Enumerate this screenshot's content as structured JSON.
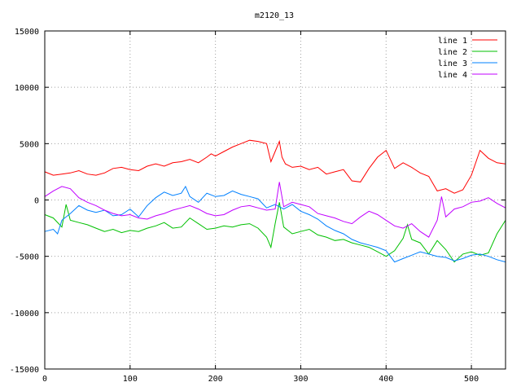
{
  "chart_data": {
    "type": "line",
    "title": "m2120_13",
    "xlabel": "",
    "ylabel": "",
    "xlim": [
      0,
      540
    ],
    "ylim": [
      -15000,
      15000
    ],
    "xticks": [
      0,
      100,
      200,
      300,
      400,
      500
    ],
    "yticks": [
      -15000,
      -10000,
      -5000,
      0,
      5000,
      10000,
      15000
    ],
    "grid": true,
    "legend_position": "top-right",
    "series": [
      {
        "name": "line 1",
        "color": "#ff0000",
        "x": [
          0,
          10,
          20,
          30,
          40,
          50,
          60,
          70,
          80,
          90,
          100,
          110,
          120,
          130,
          140,
          150,
          160,
          170,
          180,
          190,
          195,
          200,
          210,
          220,
          230,
          240,
          250,
          260,
          265,
          270,
          275,
          278,
          282,
          290,
          300,
          310,
          320,
          330,
          340,
          350,
          360,
          370,
          380,
          390,
          400,
          410,
          420,
          430,
          440,
          450,
          460,
          470,
          480,
          490,
          500,
          510,
          520,
          530,
          540
        ],
        "y": [
          2500,
          2200,
          2300,
          2400,
          2600,
          2300,
          2200,
          2400,
          2800,
          2900,
          2700,
          2600,
          3000,
          3200,
          3000,
          3300,
          3400,
          3600,
          3300,
          3800,
          4100,
          3900,
          4300,
          4700,
          5000,
          5300,
          5200,
          5000,
          3400,
          4300,
          5200,
          3800,
          3200,
          2900,
          3000,
          2700,
          2900,
          2300,
          2500,
          2700,
          1700,
          1600,
          2800,
          3800,
          4400,
          2800,
          3300,
          2900,
          2400,
          2100,
          800,
          1000,
          600,
          900,
          2200,
          4400,
          3700,
          3300,
          3200
        ]
      },
      {
        "name": "line 2",
        "color": "#00c000",
        "x": [
          0,
          10,
          20,
          25,
          30,
          40,
          50,
          60,
          70,
          80,
          90,
          100,
          110,
          120,
          130,
          140,
          150,
          160,
          170,
          180,
          190,
          200,
          210,
          220,
          230,
          240,
          250,
          260,
          265,
          270,
          275,
          280,
          290,
          300,
          310,
          320,
          330,
          340,
          350,
          360,
          370,
          380,
          390,
          400,
          410,
          420,
          425,
          430,
          440,
          450,
          460,
          470,
          480,
          490,
          500,
          510,
          520,
          530,
          540
        ],
        "y": [
          -1300,
          -1600,
          -2400,
          -400,
          -1800,
          -2000,
          -2200,
          -2500,
          -2800,
          -2600,
          -2900,
          -2700,
          -2800,
          -2500,
          -2300,
          -2000,
          -2500,
          -2400,
          -1600,
          -2100,
          -2600,
          -2500,
          -2300,
          -2400,
          -2200,
          -2100,
          -2500,
          -3300,
          -4200,
          -2100,
          -200,
          -2400,
          -3000,
          -2800,
          -2600,
          -3100,
          -3300,
          -3600,
          -3500,
          -3800,
          -4000,
          -4200,
          -4600,
          -5000,
          -4500,
          -3400,
          -2200,
          -3500,
          -3800,
          -4800,
          -3600,
          -4400,
          -5500,
          -4800,
          -4600,
          -4900,
          -4700,
          -3000,
          -1800
        ]
      },
      {
        "name": "line 3",
        "color": "#0080ff",
        "x": [
          0,
          10,
          15,
          20,
          30,
          40,
          50,
          60,
          70,
          80,
          90,
          100,
          110,
          120,
          130,
          140,
          150,
          160,
          165,
          170,
          180,
          190,
          200,
          210,
          220,
          230,
          240,
          250,
          260,
          270,
          280,
          290,
          300,
          310,
          320,
          330,
          340,
          350,
          360,
          370,
          380,
          390,
          400,
          410,
          420,
          430,
          440,
          450,
          460,
          470,
          480,
          490,
          500,
          510,
          520,
          530,
          540
        ],
        "y": [
          -2800,
          -2600,
          -3000,
          -1800,
          -1200,
          -500,
          -900,
          -1100,
          -900,
          -1400,
          -1300,
          -800,
          -1500,
          -500,
          200,
          700,
          400,
          600,
          1200,
          300,
          -200,
          600,
          300,
          400,
          800,
          500,
          300,
          100,
          -700,
          -400,
          -800,
          -400,
          -1000,
          -1300,
          -1700,
          -2300,
          -2700,
          -3000,
          -3500,
          -3800,
          -4000,
          -4200,
          -4500,
          -5500,
          -5200,
          -4900,
          -4600,
          -4800,
          -5000,
          -5100,
          -5400,
          -5200,
          -4900,
          -4800,
          -5000,
          -5300,
          -5500
        ]
      },
      {
        "name": "line 4",
        "color": "#c000ff",
        "x": [
          0,
          10,
          20,
          30,
          40,
          50,
          60,
          70,
          80,
          90,
          100,
          110,
          120,
          130,
          140,
          150,
          160,
          170,
          180,
          190,
          200,
          210,
          220,
          230,
          240,
          250,
          260,
          270,
          275,
          280,
          290,
          300,
          310,
          320,
          330,
          340,
          350,
          360,
          370,
          380,
          390,
          400,
          410,
          420,
          430,
          440,
          450,
          460,
          465,
          470,
          480,
          490,
          500,
          510,
          520,
          530,
          540
        ],
        "y": [
          300,
          800,
          1200,
          1000,
          200,
          -200,
          -500,
          -900,
          -1200,
          -1400,
          -1300,
          -1600,
          -1700,
          -1400,
          -1200,
          -900,
          -700,
          -500,
          -800,
          -1200,
          -1400,
          -1300,
          -900,
          -600,
          -500,
          -700,
          -900,
          -800,
          1600,
          -600,
          -200,
          -400,
          -600,
          -1200,
          -1400,
          -1600,
          -1900,
          -2100,
          -1500,
          -1000,
          -1300,
          -1800,
          -2300,
          -2500,
          -2100,
          -2800,
          -3300,
          -1800,
          300,
          -1500,
          -800,
          -600,
          -200,
          -100,
          200,
          -300,
          -700
        ]
      }
    ]
  }
}
